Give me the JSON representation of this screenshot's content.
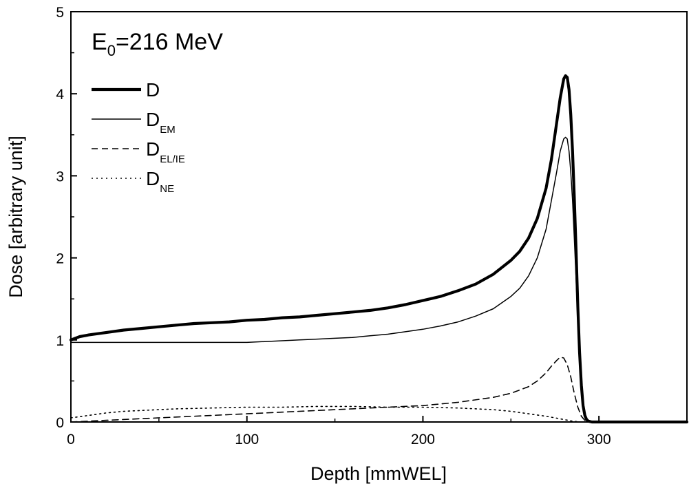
{
  "chart_data": {
    "type": "line",
    "xlabel": "Depth [mmWEL]",
    "ylabel": "Dose [arbitrary unit]",
    "xlim": [
      0,
      350
    ],
    "ylim": [
      0,
      5
    ],
    "xticks": [
      "0",
      "100",
      "200",
      "300"
    ],
    "yticks": [
      "0",
      "1",
      "2",
      "3",
      "4",
      "5"
    ],
    "annotation": {
      "main": "E",
      "sub": "0",
      "rest": "=216 MeV"
    },
    "grid": false,
    "legend_position": "top-left",
    "series": [
      {
        "name": "D",
        "name_sub": "",
        "style": "thick-solid",
        "x": [
          0,
          5,
          10,
          20,
          30,
          40,
          50,
          60,
          70,
          80,
          90,
          100,
          110,
          120,
          130,
          140,
          150,
          160,
          170,
          180,
          190,
          200,
          210,
          220,
          230,
          240,
          250,
          255,
          260,
          265,
          270,
          273,
          276,
          278,
          280,
          281,
          282,
          283,
          284,
          285,
          286,
          287,
          288,
          289,
          290,
          291,
          292,
          293,
          294,
          296,
          298,
          300,
          320,
          350
        ],
        "y": [
          1.0,
          1.04,
          1.06,
          1.09,
          1.12,
          1.14,
          1.16,
          1.18,
          1.2,
          1.21,
          1.22,
          1.24,
          1.25,
          1.27,
          1.28,
          1.3,
          1.32,
          1.34,
          1.36,
          1.39,
          1.43,
          1.48,
          1.53,
          1.6,
          1.68,
          1.8,
          1.97,
          2.08,
          2.24,
          2.48,
          2.85,
          3.2,
          3.65,
          3.95,
          4.18,
          4.22,
          4.2,
          4.05,
          3.75,
          3.3,
          2.75,
          2.1,
          1.4,
          0.85,
          0.45,
          0.2,
          0.08,
          0.03,
          0.01,
          0.0,
          0.0,
          0.0,
          0.0,
          0.0
        ]
      },
      {
        "name": "D",
        "name_sub": "EM",
        "style": "thin-solid",
        "x": [
          0,
          10,
          20,
          30,
          40,
          50,
          60,
          70,
          80,
          90,
          100,
          110,
          120,
          130,
          140,
          150,
          160,
          170,
          180,
          190,
          200,
          210,
          220,
          230,
          240,
          250,
          255,
          260,
          265,
          270,
          273,
          276,
          278,
          280,
          281,
          282,
          283,
          284,
          285,
          286,
          287,
          288,
          289,
          290,
          291,
          292,
          293,
          294,
          296,
          298,
          300,
          320,
          350
        ],
        "y": [
          0.97,
          0.97,
          0.97,
          0.97,
          0.97,
          0.97,
          0.97,
          0.97,
          0.97,
          0.97,
          0.97,
          0.98,
          0.99,
          1.0,
          1.01,
          1.02,
          1.03,
          1.05,
          1.07,
          1.1,
          1.13,
          1.17,
          1.22,
          1.29,
          1.38,
          1.53,
          1.63,
          1.78,
          2.0,
          2.35,
          2.7,
          3.05,
          3.3,
          3.45,
          3.47,
          3.45,
          3.3,
          3.05,
          2.7,
          2.25,
          1.75,
          1.2,
          0.75,
          0.4,
          0.18,
          0.07,
          0.02,
          0.0,
          0.0,
          0.0,
          0.0,
          0.0,
          0.0
        ]
      },
      {
        "name": "D",
        "name_sub": "EL/IE",
        "style": "dashed",
        "x": [
          0,
          20,
          40,
          60,
          80,
          100,
          120,
          140,
          160,
          180,
          200,
          220,
          240,
          250,
          260,
          265,
          270,
          273,
          276,
          278,
          280,
          282,
          284,
          286,
          288,
          290,
          292,
          295,
          300,
          350
        ],
        "y": [
          0.0,
          0.02,
          0.04,
          0.06,
          0.08,
          0.1,
          0.12,
          0.14,
          0.16,
          0.18,
          0.2,
          0.24,
          0.3,
          0.35,
          0.43,
          0.5,
          0.6,
          0.68,
          0.75,
          0.79,
          0.78,
          0.7,
          0.55,
          0.35,
          0.18,
          0.07,
          0.02,
          0.0,
          0.0,
          0.0
        ]
      },
      {
        "name": "D",
        "name_sub": "NE",
        "style": "dotted",
        "x": [
          0,
          10,
          20,
          30,
          40,
          50,
          60,
          80,
          100,
          120,
          140,
          160,
          180,
          200,
          220,
          240,
          250,
          260,
          270,
          275,
          280,
          285,
          290,
          300,
          350
        ],
        "y": [
          0.05,
          0.08,
          0.11,
          0.13,
          0.14,
          0.15,
          0.16,
          0.17,
          0.18,
          0.18,
          0.19,
          0.19,
          0.18,
          0.18,
          0.17,
          0.15,
          0.13,
          0.1,
          0.07,
          0.05,
          0.03,
          0.01,
          0.0,
          0.0,
          0.0
        ]
      }
    ]
  }
}
